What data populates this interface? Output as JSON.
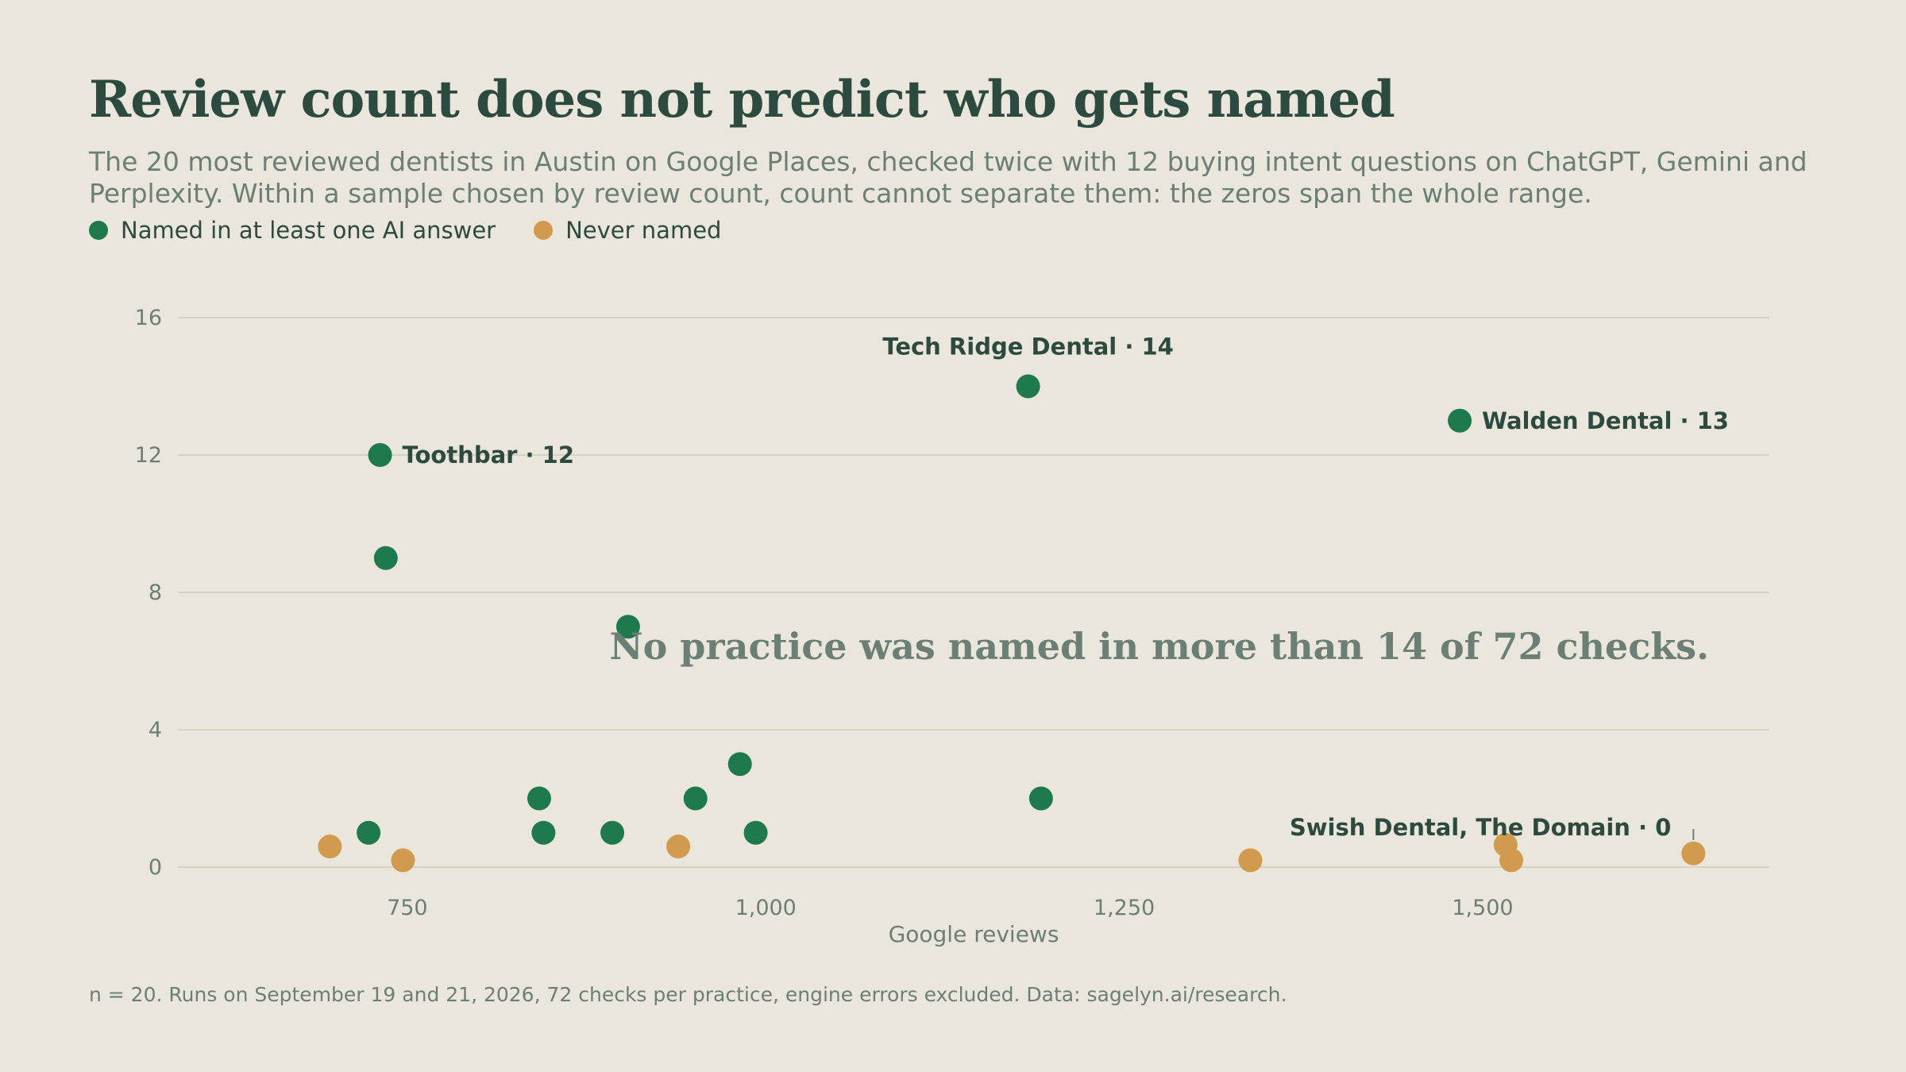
{
  "header": {
    "title": "Review count does not predict who gets named",
    "subtitle": "The 20 most reviewed dentists in Austin on Google Places, checked twice with 12 buying intent questions on ChatGPT, Gemini and Perplexity. Within a sample chosen by review count, count cannot separate them: the zeros span the whole range."
  },
  "legend": {
    "named_label": "Named in at least one AI answer",
    "never_label": "Never named"
  },
  "colors": {
    "background": "#eae6db",
    "named": "#1e7a4c",
    "never": "#d19a4f",
    "title": "#2d4a40",
    "muted": "#6c7f77",
    "grid": "#d6d2c4"
  },
  "chart_data": {
    "type": "scatter",
    "xlabel": "Google reviews",
    "ylabel": "",
    "xlim": [
      590,
      1700
    ],
    "ylim": [
      0,
      16
    ],
    "x_ticks": [
      750,
      1000,
      1250,
      1500
    ],
    "x_tick_labels": [
      "750",
      "1,000",
      "1,250",
      "1,500"
    ],
    "y_ticks": [
      0,
      4,
      8,
      12,
      16
    ],
    "y_tick_labels": [
      "0",
      "4",
      "8",
      "12",
      "16"
    ],
    "grid": "horizontal",
    "legend_position": "top-left",
    "series": [
      {
        "name": "Named in at least one AI answer",
        "color": "#1e7a4c",
        "points": [
          {
            "x": 731,
            "y": 12
          },
          {
            "x": 735,
            "y": 9
          },
          {
            "x": 723,
            "y": 1
          },
          {
            "x": 842,
            "y": 2
          },
          {
            "x": 845,
            "y": 1
          },
          {
            "x": 893,
            "y": 1
          },
          {
            "x": 904,
            "y": 7
          },
          {
            "x": 951,
            "y": 2
          },
          {
            "x": 982,
            "y": 3
          },
          {
            "x": 993,
            "y": 1
          },
          {
            "x": 1183,
            "y": 14
          },
          {
            "x": 1192,
            "y": 2
          },
          {
            "x": 1484,
            "y": 13
          }
        ]
      },
      {
        "name": "Never named",
        "color": "#d19a4f",
        "points": [
          {
            "x": 696,
            "y": 0
          },
          {
            "x": 747,
            "y": 0
          },
          {
            "x": 939,
            "y": 0
          },
          {
            "x": 1338,
            "y": 0
          },
          {
            "x": 1516,
            "y": 0
          },
          {
            "x": 1520,
            "y": 0
          },
          {
            "x": 1647,
            "y": 0
          }
        ]
      }
    ],
    "point_labels": [
      {
        "text": "Tech Ridge Dental · 14",
        "x": 1183,
        "y": 14
      },
      {
        "text": "Walden Dental · 13",
        "x": 1484,
        "y": 13
      },
      {
        "text": "Toothbar · 12",
        "x": 731,
        "y": 12
      },
      {
        "text": "Swish Dental, The Domain · 0",
        "x": 1647,
        "y": 0
      }
    ],
    "annotation": "No practice was named in more than 14 of 72 checks."
  },
  "footnote": "n = 20. Runs on September 19 and 21, 2026, 72 checks per practice, engine errors excluded. Data: sagelyn.ai/research."
}
